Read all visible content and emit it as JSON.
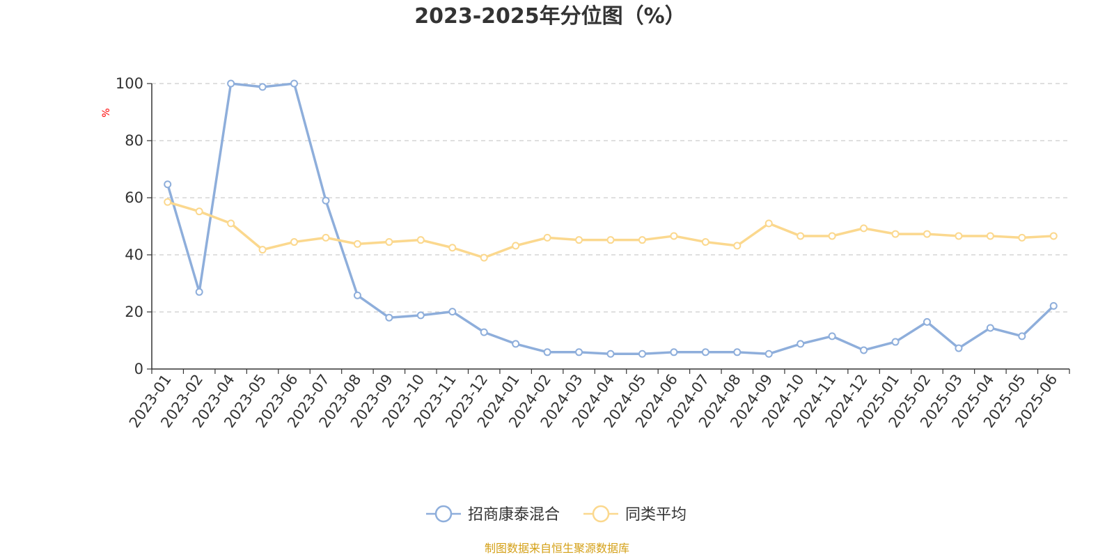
{
  "chart_data": {
    "type": "line",
    "title": "2023-2025年分位图（%）",
    "ylabel": "%",
    "ylim": [
      0,
      100
    ],
    "yticks": [
      0,
      20,
      40,
      60,
      80,
      100
    ],
    "grid": "horizontal dashed",
    "legend_position": "bottom-center",
    "categories": [
      "2023-01",
      "2023-02",
      "2023-04",
      "2023-05",
      "2023-06",
      "2023-07",
      "2023-08",
      "2023-09",
      "2023-10",
      "2023-11",
      "2023-12",
      "2024-01",
      "2024-02",
      "2024-03",
      "2024-04",
      "2024-05",
      "2024-06",
      "2024-07",
      "2024-08",
      "2024-09",
      "2024-10",
      "2024-11",
      "2024-12",
      "2025-01",
      "2025-02",
      "2025-03",
      "2025-04",
      "2025-05",
      "2025-06"
    ],
    "series": [
      {
        "name": "招商康泰混合",
        "color": "#8eaedb",
        "values": [
          64.7,
          27.0,
          100.0,
          98.8,
          100.0,
          59.0,
          25.8,
          18.0,
          18.8,
          20.1,
          12.9,
          8.8,
          5.9,
          5.9,
          5.3,
          5.3,
          5.9,
          5.9,
          5.9,
          5.3,
          8.8,
          11.5,
          6.6,
          9.5,
          16.5,
          7.3,
          14.4,
          11.5,
          22.1
        ]
      },
      {
        "name": "同类平均",
        "color": "#fbd88e",
        "values": [
          58.5,
          55.2,
          51.0,
          41.8,
          44.5,
          46.0,
          43.8,
          44.5,
          45.2,
          42.5,
          39.0,
          43.2,
          46.0,
          45.2,
          45.2,
          45.2,
          46.6,
          44.5,
          43.2,
          51.0,
          46.6,
          46.6,
          49.3,
          47.3,
          47.3,
          46.6,
          46.6,
          46.0,
          46.6
        ]
      }
    ]
  },
  "source_text": "制图数据来自恒生聚源数据库",
  "colors": {
    "axis_unit": "#ff0000",
    "source": "#d4a017",
    "grid": "#cccccc"
  }
}
